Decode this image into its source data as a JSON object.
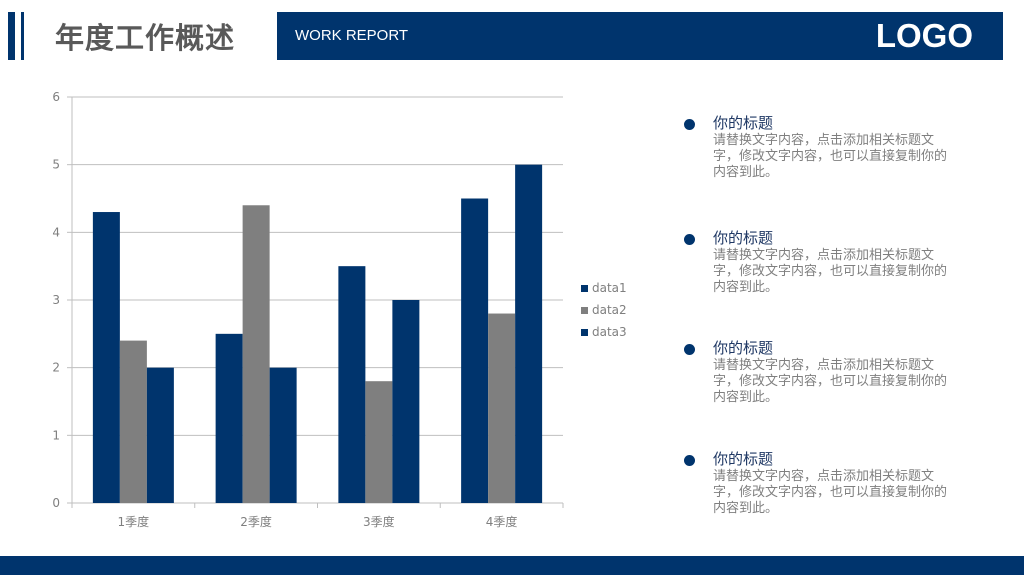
{
  "header": {
    "title": "年度工作概述",
    "subtitle": "WORK REPORT",
    "logo": "LOGO"
  },
  "colors": {
    "brand": "#00346d",
    "data1": "#00346d",
    "data2": "#7f7f7f",
    "data3": "#00346d",
    "grid": "#bfbfbf",
    "axis_text": "#7f7f7f"
  },
  "items": [
    {
      "title": "你的标题",
      "body": "请替换文字内容，点击添加相关标题文字，修改文字内容，也可以直接复制你的内容到此。"
    },
    {
      "title": "你的标题",
      "body": "请替换文字内容，点击添加相关标题文字，修改文字内容，也可以直接复制你的内容到此。"
    },
    {
      "title": "你的标题",
      "body": "请替换文字内容，点击添加相关标题文字，修改文字内容，也可以直接复制你的内容到此。"
    },
    {
      "title": "你的标题",
      "body": "请替换文字内容，点击添加相关标题文字，修改文字内容，也可以直接复制你的内容到此。"
    }
  ],
  "chart_data": {
    "type": "bar",
    "categories": [
      "1季度",
      "2季度",
      "3季度",
      "4季度"
    ],
    "series": [
      {
        "name": "data1",
        "values": [
          4.3,
          2.5,
          3.5,
          4.5
        ]
      },
      {
        "name": "data2",
        "values": [
          2.4,
          4.4,
          1.8,
          2.8
        ]
      },
      {
        "name": "data3",
        "values": [
          2,
          2,
          3,
          5
        ]
      }
    ],
    "ylim": [
      0,
      6
    ],
    "yticks": [
      0,
      1,
      2,
      3,
      4,
      5,
      6
    ],
    "grid": true,
    "legend": "right"
  }
}
